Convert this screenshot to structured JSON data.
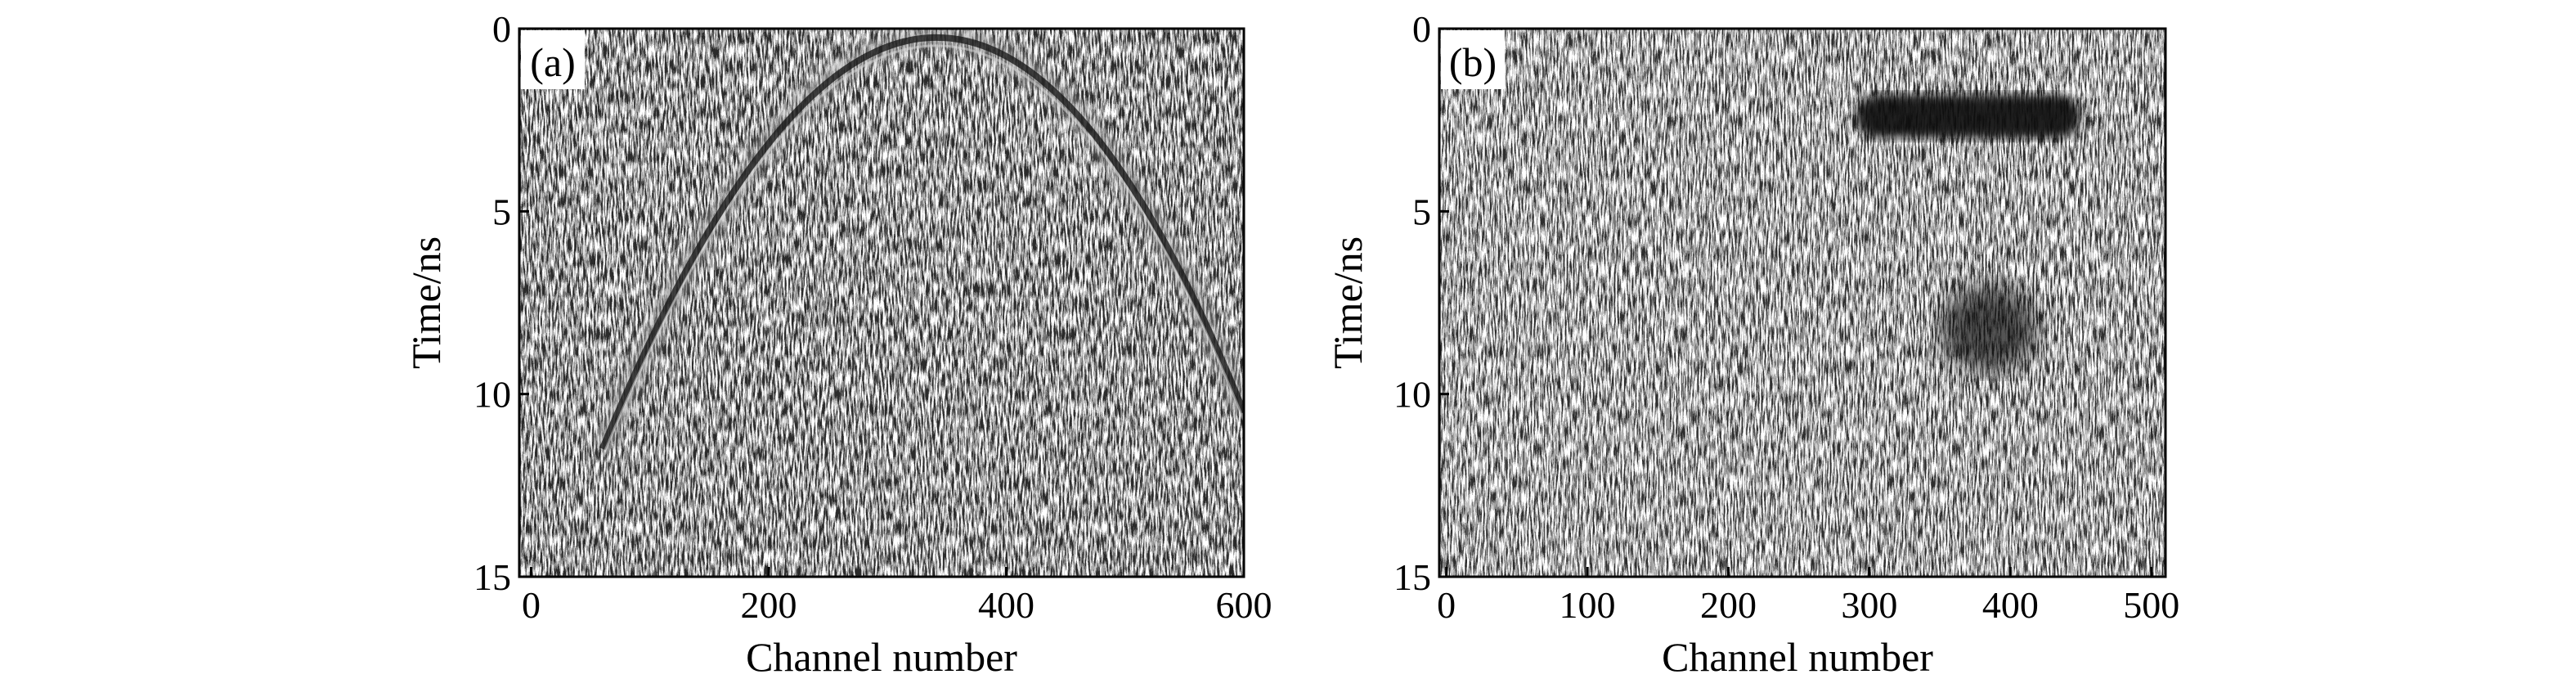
{
  "chart_data": [
    {
      "type": "heatmap",
      "panel_label": "(a)",
      "title": "",
      "xlabel": "Channel number",
      "ylabel": "Time/ns",
      "xlim": [
        -10,
        600
      ],
      "ylim": [
        15,
        0
      ],
      "x_ticks": [
        {
          "value": 0,
          "label": "0"
        },
        {
          "value": 200,
          "label": "200"
        },
        {
          "value": 400,
          "label": "400"
        },
        {
          "value": 600,
          "label": "600"
        }
      ],
      "y_ticks": [
        {
          "value": 0,
          "label": "0"
        },
        {
          "value": 5,
          "label": "5"
        },
        {
          "value": 10,
          "label": "10"
        },
        {
          "value": 15,
          "label": "15"
        }
      ],
      "colormap": "grayscale",
      "features": [
        {
          "kind": "hyperbola",
          "apex_channel": 340,
          "apex_time_ns": 0.8,
          "left_end": [
            60,
            11.5
          ],
          "right_end": [
            600,
            10.5
          ]
        }
      ]
    },
    {
      "type": "heatmap",
      "panel_label": "(b)",
      "title": "",
      "xlabel": "Channel number",
      "ylabel": "Time/ns",
      "xlim": [
        -5,
        510
      ],
      "ylim": [
        15,
        0
      ],
      "x_ticks": [
        {
          "value": 0,
          "label": "0"
        },
        {
          "value": 100,
          "label": "100"
        },
        {
          "value": 200,
          "label": "200"
        },
        {
          "value": 300,
          "label": "300"
        },
        {
          "value": 400,
          "label": "400"
        },
        {
          "value": 500,
          "label": "500"
        }
      ],
      "y_ticks": [
        {
          "value": 0,
          "label": "0"
        },
        {
          "value": 5,
          "label": "5"
        },
        {
          "value": 10,
          "label": "10"
        },
        {
          "value": 15,
          "label": "15"
        }
      ],
      "colormap": "grayscale",
      "features": [
        {
          "kind": "band",
          "channel_range": [
            290,
            450
          ],
          "time_range_ns": [
            1.8,
            3.0
          ]
        },
        {
          "kind": "blob",
          "center_channel": 385,
          "center_time_ns": 8.2,
          "radius_channels": 35,
          "radius_ns": 1.2
        }
      ]
    }
  ]
}
